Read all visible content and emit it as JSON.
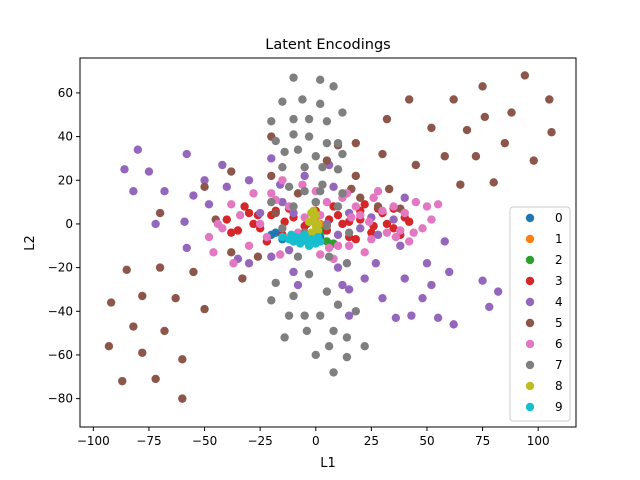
{
  "chart_data": {
    "type": "scatter",
    "title": "Latent Encodings",
    "xlabel": "L1",
    "ylabel": "L2",
    "xlim": [
      -106,
      117
    ],
    "ylim": [
      -93,
      76
    ],
    "xticks": [
      -100,
      -75,
      -50,
      -25,
      0,
      25,
      50,
      75,
      100
    ],
    "yticks": [
      -80,
      -60,
      -40,
      -20,
      0,
      20,
      40,
      60
    ],
    "grid": false,
    "legend_position": "right",
    "series": [
      {
        "name": "0",
        "color": "#1f77b4",
        "points": [
          [
            -20,
            -5
          ],
          [
            -15,
            -7
          ],
          [
            -5,
            -4
          ],
          [
            2,
            -6
          ],
          [
            -10,
            -8
          ],
          [
            -18,
            -4
          ]
        ]
      },
      {
        "name": "1",
        "color": "#ff7f0e",
        "points": [
          [
            0,
            3
          ],
          [
            2,
            0
          ],
          [
            -1,
            5
          ],
          [
            1,
            -2
          ]
        ]
      },
      {
        "name": "2",
        "color": "#2ca02c",
        "points": [
          [
            1,
            -5
          ],
          [
            5,
            -8
          ],
          [
            -2,
            -6
          ],
          [
            4,
            -3
          ],
          [
            8,
            -9
          ],
          [
            -4,
            0
          ]
        ]
      },
      {
        "name": "3",
        "color": "#d62728",
        "points": [
          [
            -40,
            2
          ],
          [
            -35,
            -3
          ],
          [
            -30,
            5
          ],
          [
            -25,
            -2
          ],
          [
            -20,
            4
          ],
          [
            -15,
            -5
          ],
          [
            -10,
            3
          ],
          [
            -5,
            -1
          ],
          [
            0,
            6
          ],
          [
            5,
            -3
          ],
          [
            10,
            4
          ],
          [
            15,
            -6
          ],
          [
            20,
            2
          ],
          [
            25,
            -4
          ],
          [
            30,
            5
          ],
          [
            35,
            -2
          ],
          [
            40,
            3
          ],
          [
            -32,
            8
          ],
          [
            -22,
            -8
          ],
          [
            -12,
            7
          ],
          [
            8,
            8
          ],
          [
            18,
            -7
          ],
          [
            28,
            7
          ],
          [
            38,
            -5
          ],
          [
            -28,
            0
          ],
          [
            -8,
            -6
          ],
          [
            12,
            0
          ],
          [
            32,
            0
          ],
          [
            22,
            9
          ],
          [
            2,
            -8
          ],
          [
            -18,
            6
          ],
          [
            42,
            1
          ],
          [
            -38,
            -4
          ],
          [
            15,
            1
          ],
          [
            26,
            -1
          ],
          [
            6,
            2
          ],
          [
            -26,
            4
          ],
          [
            20,
            6
          ],
          [
            35,
            7
          ],
          [
            -14,
            1
          ]
        ]
      },
      {
        "name": "4",
        "color": "#9467bd",
        "points": [
          [
            -80,
            34
          ],
          [
            -86,
            25
          ],
          [
            -82,
            15
          ],
          [
            -75,
            24
          ],
          [
            -68,
            15
          ],
          [
            -72,
            0
          ],
          [
            -58,
            32
          ],
          [
            -55,
            13
          ],
          [
            -50,
            20
          ],
          [
            -42,
            27
          ],
          [
            -40,
            17
          ],
          [
            -48,
            9
          ],
          [
            -59,
            1
          ],
          [
            -58,
            -11
          ],
          [
            -30,
            20
          ],
          [
            -20,
            30
          ],
          [
            -16,
            18
          ],
          [
            -35,
            -16
          ],
          [
            -30,
            -18
          ],
          [
            -25,
            5
          ],
          [
            -10,
            5
          ],
          [
            -5,
            -5
          ],
          [
            0,
            10
          ],
          [
            5,
            0
          ],
          [
            10,
            -5
          ],
          [
            15,
            5
          ],
          [
            20,
            -2
          ],
          [
            25,
            3
          ],
          [
            -15,
            10
          ],
          [
            -20,
            -15
          ],
          [
            -10,
            -22
          ],
          [
            -8,
            -28
          ],
          [
            10,
            -20
          ],
          [
            12,
            -28
          ],
          [
            15,
            -30
          ],
          [
            15,
            -42
          ],
          [
            22,
            -25
          ],
          [
            27,
            -18
          ],
          [
            28,
            -5
          ],
          [
            35,
            2
          ],
          [
            38,
            -10
          ],
          [
            40,
            -25
          ],
          [
            43,
            -42
          ],
          [
            48,
            -34
          ],
          [
            50,
            -18
          ],
          [
            52,
            -28
          ],
          [
            55,
            -43
          ],
          [
            58,
            -8
          ],
          [
            60,
            -22
          ],
          [
            62,
            -46
          ],
          [
            75,
            -26
          ],
          [
            78,
            -38
          ],
          [
            82,
            -31
          ],
          [
            -5,
            22
          ],
          [
            8,
            17
          ],
          [
            -12,
            -12
          ],
          [
            40,
            12
          ],
          [
            30,
            -34
          ],
          [
            36,
            -43
          ],
          [
            6,
            27
          ]
        ]
      },
      {
        "name": "5",
        "color": "#8c564b",
        "points": [
          [
            -87,
            -72
          ],
          [
            -93,
            -56
          ],
          [
            -92,
            -36
          ],
          [
            -85,
            -21
          ],
          [
            -82,
            -47
          ],
          [
            -78,
            -33
          ],
          [
            -78,
            -59
          ],
          [
            -72,
            -71
          ],
          [
            -70,
            5
          ],
          [
            -70,
            -20
          ],
          [
            -68,
            -49
          ],
          [
            -63,
            -34
          ],
          [
            -60,
            -62
          ],
          [
            -60,
            -80
          ],
          [
            -55,
            -22
          ],
          [
            -50,
            -39
          ],
          [
            -45,
            2
          ],
          [
            -50,
            17
          ],
          [
            -38,
            24
          ],
          [
            -38,
            -13
          ],
          [
            -33,
            -25
          ],
          [
            -20,
            22
          ],
          [
            -20,
            40
          ],
          [
            -18,
            5
          ],
          [
            5,
            29
          ],
          [
            10,
            36
          ],
          [
            18,
            37
          ],
          [
            18,
            22
          ],
          [
            28,
            8
          ],
          [
            30,
            32
          ],
          [
            32,
            48
          ],
          [
            33,
            16
          ],
          [
            38,
            7
          ],
          [
            42,
            57
          ],
          [
            45,
            27
          ],
          [
            52,
            44
          ],
          [
            58,
            31
          ],
          [
            62,
            57
          ],
          [
            65,
            18
          ],
          [
            68,
            43
          ],
          [
            72,
            31
          ],
          [
            75,
            63
          ],
          [
            76,
            49
          ],
          [
            80,
            19
          ],
          [
            85,
            37
          ],
          [
            88,
            51
          ],
          [
            94,
            68
          ],
          [
            98,
            29
          ],
          [
            105,
            57
          ],
          [
            106,
            42
          ],
          [
            -26,
            -15
          ],
          [
            20,
            12
          ],
          [
            -8,
            14
          ],
          [
            16,
            16
          ]
        ]
      },
      {
        "name": "6",
        "color": "#e377c2",
        "points": [
          [
            -48,
            -6
          ],
          [
            -46,
            -13
          ],
          [
            -42,
            -2
          ],
          [
            -38,
            9
          ],
          [
            -37,
            -18
          ],
          [
            -30,
            -10
          ],
          [
            -28,
            14
          ],
          [
            -25,
            0
          ],
          [
            -22,
            -6
          ],
          [
            -18,
            11
          ],
          [
            -15,
            20
          ],
          [
            -12,
            8
          ],
          [
            -8,
            -4
          ],
          [
            -5,
            3
          ],
          [
            0,
            15
          ],
          [
            2,
            -14
          ],
          [
            5,
            10
          ],
          [
            8,
            -16
          ],
          [
            12,
            12
          ],
          [
            15,
            -10
          ],
          [
            18,
            8
          ],
          [
            20,
            4
          ],
          [
            22,
            -13
          ],
          [
            25,
            -7
          ],
          [
            28,
            15
          ],
          [
            30,
            6
          ],
          [
            32,
            -4
          ],
          [
            35,
            8
          ],
          [
            38,
            -3
          ],
          [
            40,
            5
          ],
          [
            42,
            -8
          ],
          [
            45,
            10
          ],
          [
            48,
            -2
          ],
          [
            50,
            8
          ],
          [
            52,
            2
          ],
          [
            55,
            9
          ],
          [
            -20,
            14
          ],
          [
            -16,
            -14
          ],
          [
            10,
            -10
          ],
          [
            14,
            14
          ],
          [
            24,
            1
          ],
          [
            44,
            -4
          ],
          [
            -44,
            0
          ],
          [
            -34,
            4
          ],
          [
            6,
            -11
          ],
          [
            26,
            12
          ],
          [
            36,
            -6
          ],
          [
            16,
            3
          ],
          [
            -6,
            18
          ],
          [
            2,
            4
          ]
        ]
      },
      {
        "name": "7",
        "color": "#7f7f7f",
        "points": [
          [
            -10,
            67
          ],
          [
            2,
            66
          ],
          [
            8,
            63
          ],
          [
            -15,
            56
          ],
          [
            -6,
            57
          ],
          [
            2,
            55
          ],
          [
            -20,
            47
          ],
          [
            -10,
            48
          ],
          [
            -3,
            48
          ],
          [
            5,
            47
          ],
          [
            12,
            51
          ],
          [
            -18,
            38
          ],
          [
            -10,
            41
          ],
          [
            -3,
            40
          ],
          [
            5,
            37
          ],
          [
            10,
            37
          ],
          [
            -8,
            34
          ],
          [
            0,
            31
          ],
          [
            12,
            32
          ],
          [
            -15,
            26
          ],
          [
            -5,
            26
          ],
          [
            3,
            26
          ],
          [
            10,
            25
          ],
          [
            -12,
            17
          ],
          [
            -5,
            15
          ],
          [
            2,
            15
          ],
          [
            12,
            14
          ],
          [
            -20,
            10
          ],
          [
            -10,
            8
          ],
          [
            0,
            10
          ],
          [
            10,
            8
          ],
          [
            -15,
            -2
          ],
          [
            -5,
            -4
          ],
          [
            5,
            -1
          ],
          [
            15,
            -4
          ],
          [
            -18,
            -27
          ],
          [
            -10,
            -33
          ],
          [
            -3,
            -23
          ],
          [
            5,
            -31
          ],
          [
            -20,
            -35
          ],
          [
            -12,
            -42
          ],
          [
            -5,
            -42
          ],
          [
            2,
            -42
          ],
          [
            10,
            -37
          ],
          [
            18,
            -40
          ],
          [
            -14,
            -52
          ],
          [
            -4,
            -49
          ],
          [
            8,
            -49
          ],
          [
            14,
            -52
          ],
          [
            0,
            -60
          ],
          [
            6,
            -56
          ],
          [
            14,
            -61
          ],
          [
            8,
            -68
          ],
          [
            22,
            -56
          ],
          [
            -8,
            -15
          ],
          [
            6,
            -15
          ],
          [
            14,
            -18
          ],
          [
            -2,
            -8
          ],
          [
            3,
            18
          ],
          [
            -14,
            33
          ]
        ]
      },
      {
        "name": "8",
        "color": "#bcbd22",
        "points": [
          [
            -2,
            5
          ],
          [
            -1,
            2
          ],
          [
            0,
            -1
          ],
          [
            -2,
            -4
          ],
          [
            1,
            0
          ],
          [
            -1,
            6
          ],
          [
            0,
            4
          ],
          [
            -3,
            1
          ],
          [
            1,
            -3
          ]
        ]
      },
      {
        "name": "9",
        "color": "#17becf",
        "points": [
          [
            -15,
            -6
          ],
          [
            -12,
            -7
          ],
          [
            -10,
            -8
          ],
          [
            -8,
            -7
          ],
          [
            -6,
            -6
          ],
          [
            -4,
            -8
          ],
          [
            -2,
            -7
          ],
          [
            0,
            -9
          ],
          [
            2,
            -8
          ],
          [
            -7,
            -9
          ],
          [
            -3,
            -10
          ],
          [
            -11,
            -5
          ],
          [
            1,
            -6
          ],
          [
            -5,
            -5
          ],
          [
            -9,
            -6
          ]
        ]
      }
    ]
  }
}
